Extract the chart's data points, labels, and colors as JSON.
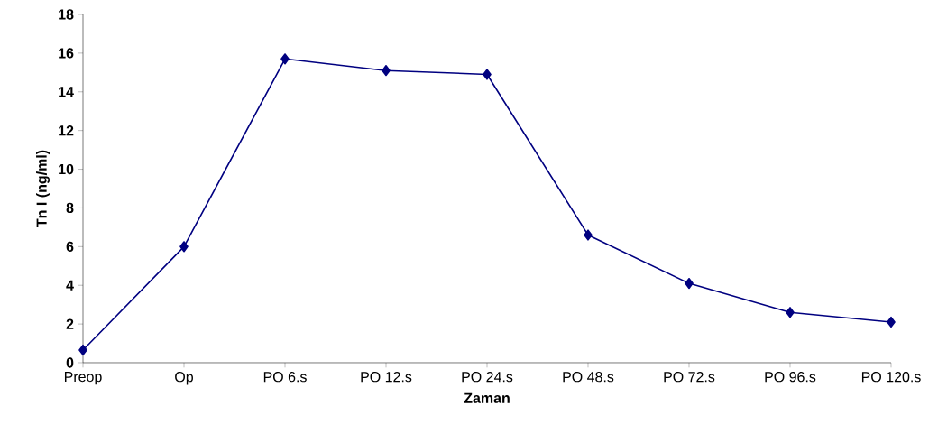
{
  "chart_data": {
    "type": "line",
    "xlabel": "Zaman",
    "ylabel": "Tn I (ng/ml)",
    "categories": [
      "Preop",
      "Op",
      "PO 6.s",
      "PO 12.s",
      "PO 24.s",
      "PO 48.s",
      "PO 72.s",
      "PO 96.s",
      "PO 120.s"
    ],
    "series": [
      {
        "color": "#000080",
        "values": [
          0.65,
          6.0,
          15.7,
          15.1,
          14.9,
          6.6,
          4.1,
          2.6,
          2.1
        ]
      }
    ],
    "ylim": [
      0,
      18
    ],
    "yticks": [
      0,
      2,
      4,
      6,
      8,
      10,
      12,
      14,
      16,
      18
    ],
    "grid": false,
    "marker": "diamond",
    "line_style": "solid"
  }
}
